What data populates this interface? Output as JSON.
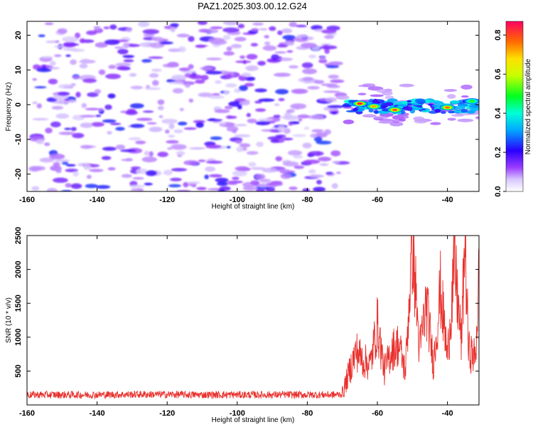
{
  "title": "PAZ1.2025.303.00.12.G24",
  "chart_data": [
    {
      "type": "heatmap",
      "xlabel": "Height of straight line (km)",
      "ylabel": "Frequency (Hz)",
      "xlim": [
        -160,
        -31
      ],
      "ylim": [
        -25,
        24
      ],
      "xticks": [
        -160,
        -140,
        -120,
        -100,
        -80,
        -60,
        -40
      ],
      "yticks": [
        -20,
        -10,
        0,
        10,
        20
      ],
      "grid": false,
      "colorbar": {
        "label": "Normalized spectral amplitude",
        "range": [
          0.0,
          0.87
        ],
        "ticks": [
          0.0,
          0.2,
          0.4,
          0.6,
          0.8
        ]
      },
      "noise_region": {
        "x": [
          -158,
          -70
        ],
        "y": [
          -25,
          24
        ],
        "typical_amplitude": 0.1
      },
      "signal_region": {
        "x": [
          -70,
          -31
        ],
        "center_frequency": 0,
        "bandwidth": 5
      },
      "peaks": [
        {
          "x": -65,
          "y": 0.3,
          "amplitude": 0.85
        },
        {
          "x": -61,
          "y": -0.5,
          "amplitude": 0.72
        },
        {
          "x": -55,
          "y": -1.5,
          "amplitude": 0.8
        },
        {
          "x": -40,
          "y": -0.8,
          "amplitude": 0.78
        },
        {
          "x": -33,
          "y": 1.0,
          "amplitude": 0.5
        }
      ]
    },
    {
      "type": "line",
      "xlabel": "Height of straight line (km)",
      "ylabel": "SNR (10 * v/v)",
      "xlim": [
        -160,
        -31
      ],
      "ylim": [
        0,
        2500
      ],
      "xticks": [
        -160,
        -140,
        -120,
        -100,
        -80,
        -60,
        -40
      ],
      "yticks": [
        500,
        1000,
        1500,
        2000,
        2500
      ],
      "grid": false,
      "color": "#e8302c",
      "series": [
        {
          "name": "SNR",
          "x": [
            -160,
            -150,
            -140,
            -130,
            -120,
            -110,
            -100,
            -90,
            -80,
            -72,
            -70,
            -68,
            -66,
            -64,
            -62,
            -60,
            -58,
            -56,
            -54,
            -52,
            -50,
            -48,
            -46,
            -44,
            -42,
            -40,
            -38,
            -36,
            -35,
            -34,
            -32,
            -31
          ],
          "y": [
            150,
            150,
            150,
            155,
            155,
            150,
            150,
            150,
            150,
            150,
            160,
            500,
            800,
            650,
            600,
            1200,
            500,
            800,
            900,
            500,
            2450,
            800,
            1500,
            600,
            1700,
            700,
            2100,
            900,
            2500,
            800,
            700,
            1900
          ]
        }
      ]
    }
  ]
}
